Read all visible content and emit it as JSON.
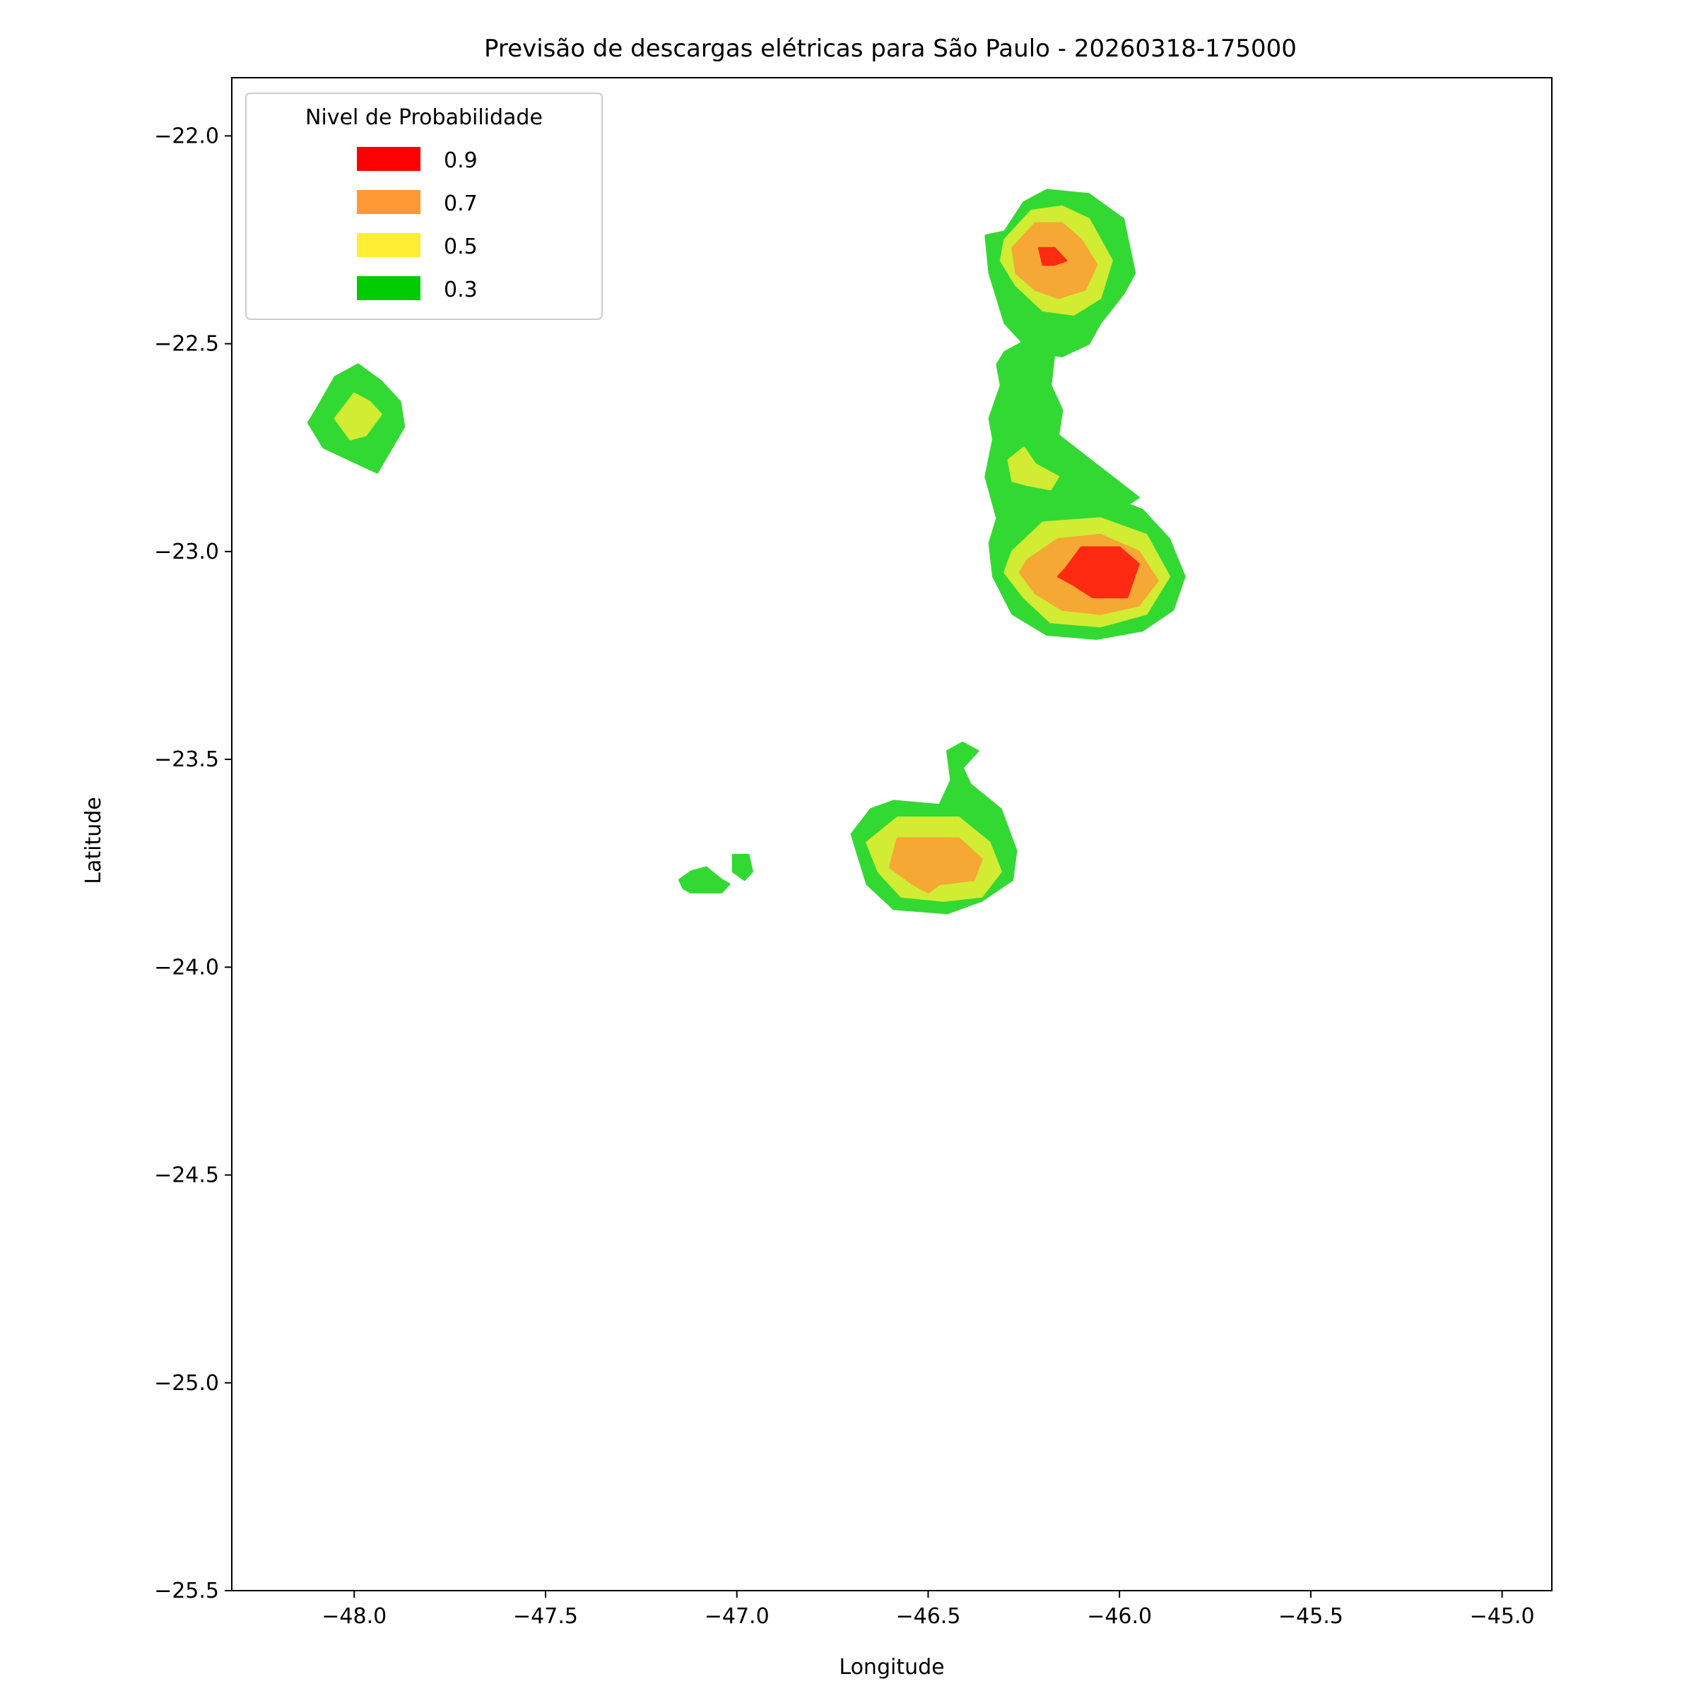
{
  "chart_data": {
    "type": "contour",
    "title": "Previsão de descargas elétricas para São Paulo - 20260318-175000",
    "xlabel": "Longitude",
    "ylabel": "Latitude",
    "xlim": [
      -48.32,
      -44.87
    ],
    "ylim": [
      -25.5,
      -21.86
    ],
    "x_ticks": [
      -48.0,
      -47.5,
      -47.0,
      -46.5,
      -46.0,
      -45.5,
      -45.0
    ],
    "x_tick_labels": [
      "−48.0",
      "−47.5",
      "−47.0",
      "−46.5",
      "−46.0",
      "−45.5",
      "−45.0"
    ],
    "y_ticks": [
      -22.0,
      -22.5,
      -23.0,
      -23.5,
      -24.0,
      -24.5,
      -25.0,
      -25.5
    ],
    "y_tick_labels": [
      "−22.0",
      "−22.5",
      "−23.0",
      "−23.5",
      "−24.0",
      "−24.5",
      "−25.0",
      "−25.5"
    ],
    "legend": {
      "title": "Nivel de Probabilidade",
      "placement": "top-left",
      "entries": [
        {
          "label": "0.9",
          "color": "#ff0000"
        },
        {
          "label": "0.7",
          "color": "#ff9933"
        },
        {
          "label": "0.5",
          "color": "#ffee33"
        },
        {
          "label": "0.3",
          "color": "#00cc00"
        }
      ]
    },
    "level_fill_colors": {
      "0.3": "#33d933",
      "0.5": "#d1ec33",
      "0.7": "#f5a833",
      "0.9": "#ff2a12"
    },
    "cells": [
      {
        "name": "cell-northeast",
        "center": [
          -46.17,
          -22.3
        ],
        "peak_level": 0.9
      },
      {
        "name": "cell-neck",
        "center": [
          -46.28,
          -22.72
        ],
        "peak_level": 0.5
      },
      {
        "name": "cell-east-main",
        "center": [
          -46.06,
          -23.05
        ],
        "peak_level": 0.9
      },
      {
        "name": "cell-west",
        "center": [
          -47.99,
          -22.68
        ],
        "peak_level": 0.5
      },
      {
        "name": "cell-south",
        "center": [
          -46.5,
          -23.73
        ],
        "peak_level": 0.7
      },
      {
        "name": "cell-small-west-a",
        "center": [
          -47.07,
          -23.79
        ],
        "peak_level": 0.3
      },
      {
        "name": "cell-small-west-b",
        "center": [
          -46.99,
          -23.74
        ],
        "peak_level": 0.3
      }
    ],
    "regions": [
      {
        "cell": "cell-northeast",
        "level": "0.3",
        "points": [
          [
            -46.3,
            -22.23
          ],
          [
            -46.25,
            -22.16
          ],
          [
            -46.19,
            -22.13
          ],
          [
            -46.08,
            -22.14
          ],
          [
            -45.99,
            -22.2
          ],
          [
            -45.96,
            -22.33
          ],
          [
            -45.99,
            -22.38
          ],
          [
            -46.05,
            -22.45
          ],
          [
            -46.08,
            -22.5
          ],
          [
            -46.15,
            -22.53
          ],
          [
            -46.23,
            -22.52
          ],
          [
            -46.3,
            -22.45
          ],
          [
            -46.34,
            -22.33
          ],
          [
            -46.35,
            -22.24
          ]
        ]
      },
      {
        "cell": "cell-northeast",
        "level": "0.5",
        "points": [
          [
            -46.3,
            -22.25
          ],
          [
            -46.23,
            -22.18
          ],
          [
            -46.15,
            -22.17
          ],
          [
            -46.08,
            -22.2
          ],
          [
            -46.02,
            -22.3
          ],
          [
            -46.05,
            -22.39
          ],
          [
            -46.12,
            -22.43
          ],
          [
            -46.2,
            -22.42
          ],
          [
            -46.27,
            -22.36
          ],
          [
            -46.31,
            -22.3
          ]
        ]
      },
      {
        "cell": "cell-northeast",
        "level": "0.7",
        "points": [
          [
            -46.28,
            -22.27
          ],
          [
            -46.22,
            -22.21
          ],
          [
            -46.15,
            -22.21
          ],
          [
            -46.1,
            -22.25
          ],
          [
            -46.06,
            -22.31
          ],
          [
            -46.09,
            -22.37
          ],
          [
            -46.16,
            -22.39
          ],
          [
            -46.22,
            -22.37
          ],
          [
            -46.27,
            -22.33
          ]
        ]
      },
      {
        "cell": "cell-northeast",
        "level": "0.9",
        "points": [
          [
            -46.21,
            -22.27
          ],
          [
            -46.17,
            -22.27
          ],
          [
            -46.14,
            -22.3
          ],
          [
            -46.17,
            -22.31
          ],
          [
            -46.2,
            -22.31
          ]
        ]
      },
      {
        "cell": "cell-neck",
        "level": "0.3",
        "points": [
          [
            -46.3,
            -22.52
          ],
          [
            -46.22,
            -22.48
          ],
          [
            -46.17,
            -22.52
          ],
          [
            -46.18,
            -22.6
          ],
          [
            -46.15,
            -22.66
          ],
          [
            -46.16,
            -22.72
          ],
          [
            -45.95,
            -22.87
          ],
          [
            -46.0,
            -22.9
          ],
          [
            -46.25,
            -22.94
          ],
          [
            -46.32,
            -22.92
          ],
          [
            -46.35,
            -22.82
          ],
          [
            -46.33,
            -22.73
          ],
          [
            -46.34,
            -22.68
          ],
          [
            -46.31,
            -22.6
          ],
          [
            -46.32,
            -22.55
          ]
        ]
      },
      {
        "cell": "cell-neck",
        "level": "0.5",
        "points": [
          [
            -46.29,
            -22.78
          ],
          [
            -46.25,
            -22.75
          ],
          [
            -46.22,
            -22.79
          ],
          [
            -46.16,
            -22.82
          ],
          [
            -46.18,
            -22.85
          ],
          [
            -46.24,
            -22.84
          ],
          [
            -46.28,
            -22.83
          ]
        ]
      },
      {
        "cell": "cell-east-main",
        "level": "0.3",
        "points": [
          [
            -46.32,
            -22.92
          ],
          [
            -46.24,
            -22.88
          ],
          [
            -46.05,
            -22.86
          ],
          [
            -45.94,
            -22.9
          ],
          [
            -45.87,
            -22.97
          ],
          [
            -45.83,
            -23.06
          ],
          [
            -45.86,
            -23.14
          ],
          [
            -45.94,
            -23.19
          ],
          [
            -46.06,
            -23.21
          ],
          [
            -46.19,
            -23.2
          ],
          [
            -46.28,
            -23.15
          ],
          [
            -46.33,
            -23.06
          ],
          [
            -46.34,
            -22.98
          ]
        ]
      },
      {
        "cell": "cell-east-main",
        "level": "0.5",
        "points": [
          [
            -46.28,
            -23.0
          ],
          [
            -46.2,
            -22.93
          ],
          [
            -46.05,
            -22.92
          ],
          [
            -45.93,
            -22.96
          ],
          [
            -45.87,
            -23.06
          ],
          [
            -45.93,
            -23.15
          ],
          [
            -46.05,
            -23.18
          ],
          [
            -46.18,
            -23.17
          ],
          [
            -46.25,
            -23.11
          ],
          [
            -46.3,
            -23.05
          ]
        ]
      },
      {
        "cell": "cell-east-main",
        "level": "0.7",
        "points": [
          [
            -46.24,
            -23.02
          ],
          [
            -46.16,
            -22.97
          ],
          [
            -46.05,
            -22.96
          ],
          [
            -45.95,
            -23.0
          ],
          [
            -45.9,
            -23.07
          ],
          [
            -45.95,
            -23.13
          ],
          [
            -46.05,
            -23.15
          ],
          [
            -46.15,
            -23.14
          ],
          [
            -46.22,
            -23.1
          ],
          [
            -46.26,
            -23.05
          ]
        ]
      },
      {
        "cell": "cell-east-main",
        "level": "0.9",
        "points": [
          [
            -46.14,
            -23.04
          ],
          [
            -46.1,
            -22.99
          ],
          [
            -46.0,
            -22.99
          ],
          [
            -45.95,
            -23.03
          ],
          [
            -45.98,
            -23.11
          ],
          [
            -46.07,
            -23.11
          ],
          [
            -46.12,
            -23.08
          ],
          [
            -46.16,
            -23.06
          ]
        ]
      },
      {
        "cell": "cell-west",
        "level": "0.3",
        "points": [
          [
            -48.1,
            -22.66
          ],
          [
            -48.05,
            -22.58
          ],
          [
            -47.99,
            -22.55
          ],
          [
            -47.93,
            -22.59
          ],
          [
            -47.88,
            -22.64
          ],
          [
            -47.87,
            -22.7
          ],
          [
            -47.94,
            -22.81
          ],
          [
            -48.01,
            -22.78
          ],
          [
            -48.08,
            -22.75
          ],
          [
            -48.12,
            -22.69
          ]
        ]
      },
      {
        "cell": "cell-west",
        "level": "0.5",
        "points": [
          [
            -48.05,
            -22.68
          ],
          [
            -48.0,
            -22.62
          ],
          [
            -47.96,
            -22.64
          ],
          [
            -47.93,
            -22.67
          ],
          [
            -47.97,
            -22.72
          ],
          [
            -48.01,
            -22.73
          ]
        ]
      },
      {
        "cell": "cell-south",
        "level": "0.3",
        "points": [
          [
            -46.45,
            -23.48
          ],
          [
            -46.41,
            -23.46
          ],
          [
            -46.37,
            -23.48
          ],
          [
            -46.41,
            -23.52
          ],
          [
            -46.39,
            -23.56
          ],
          [
            -46.31,
            -23.62
          ],
          [
            -46.27,
            -23.72
          ],
          [
            -46.28,
            -23.79
          ],
          [
            -46.36,
            -23.84
          ],
          [
            -46.45,
            -23.87
          ],
          [
            -46.59,
            -23.86
          ],
          [
            -46.66,
            -23.8
          ],
          [
            -46.7,
            -23.68
          ],
          [
            -46.65,
            -23.62
          ],
          [
            -46.59,
            -23.6
          ],
          [
            -46.47,
            -23.61
          ],
          [
            -46.44,
            -23.55
          ]
        ]
      },
      {
        "cell": "cell-south",
        "level": "0.5",
        "points": [
          [
            -46.62,
            -23.67
          ],
          [
            -46.58,
            -23.64
          ],
          [
            -46.42,
            -23.64
          ],
          [
            -46.34,
            -23.7
          ],
          [
            -46.31,
            -23.77
          ],
          [
            -46.36,
            -23.83
          ],
          [
            -46.46,
            -23.84
          ],
          [
            -46.57,
            -23.83
          ],
          [
            -46.63,
            -23.77
          ],
          [
            -46.66,
            -23.7
          ]
        ]
      },
      {
        "cell": "cell-south",
        "level": "0.7",
        "points": [
          [
            -46.58,
            -23.69
          ],
          [
            -46.42,
            -23.69
          ],
          [
            -46.36,
            -23.74
          ],
          [
            -46.38,
            -23.79
          ],
          [
            -46.47,
            -23.8
          ],
          [
            -46.5,
            -23.82
          ],
          [
            -46.54,
            -23.8
          ],
          [
            -46.6,
            -23.76
          ]
        ]
      },
      {
        "cell": "cell-small-west-a",
        "level": "0.3",
        "points": [
          [
            -47.15,
            -23.79
          ],
          [
            -47.12,
            -23.77
          ],
          [
            -47.08,
            -23.76
          ],
          [
            -47.04,
            -23.79
          ],
          [
            -47.02,
            -23.8
          ],
          [
            -47.04,
            -23.82
          ],
          [
            -47.12,
            -23.82
          ],
          [
            -47.14,
            -23.81
          ]
        ]
      },
      {
        "cell": "cell-small-west-b",
        "level": "0.3",
        "points": [
          [
            -47.01,
            -23.73
          ],
          [
            -46.97,
            -23.73
          ],
          [
            -46.96,
            -23.77
          ],
          [
            -46.98,
            -23.79
          ],
          [
            -47.01,
            -23.77
          ]
        ]
      }
    ]
  }
}
